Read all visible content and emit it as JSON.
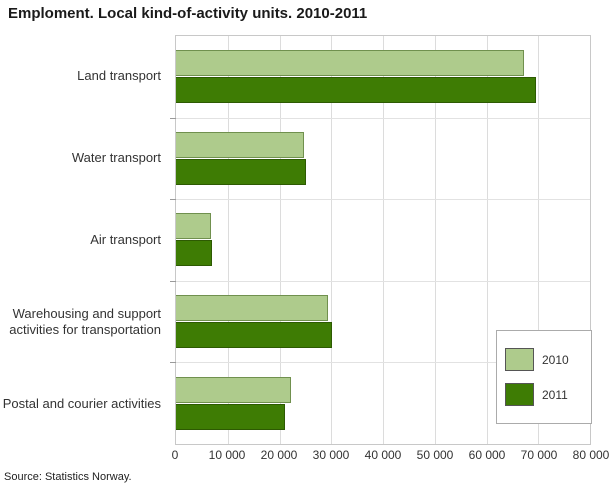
{
  "title": "Emploment. Local kind-of-activity units. 2010-2011",
  "source": "Source: Statistics Norway.",
  "chart_data": {
    "type": "bar",
    "orientation": "horizontal",
    "title": "Emploment. Local kind-of-activity units. 2010-2011",
    "categories": [
      "Land transport",
      "Water transport",
      "Air transport",
      "Warehousing and support activities for transportation",
      "Postal and courier activities"
    ],
    "series": [
      {
        "name": "2010",
        "color": "#aecb8c",
        "border": "#70904e",
        "values": [
          67300,
          24800,
          6700,
          29400,
          22200
        ]
      },
      {
        "name": "2011",
        "color": "#3e7c04",
        "border": "#2d5a02",
        "values": [
          69500,
          25200,
          7000,
          30100,
          21000
        ]
      }
    ],
    "xlabel": "",
    "ylabel": "",
    "xlim": [
      0,
      80000
    ],
    "x_ticks": [
      0,
      10000,
      20000,
      30000,
      40000,
      50000,
      60000,
      70000,
      80000
    ],
    "x_tick_labels": [
      "0",
      "10 000",
      "20 000",
      "30 000",
      "40 000",
      "50 000",
      "60 000",
      "70 000",
      "80 000"
    ],
    "grid": true,
    "legend_position": "inside-right"
  }
}
